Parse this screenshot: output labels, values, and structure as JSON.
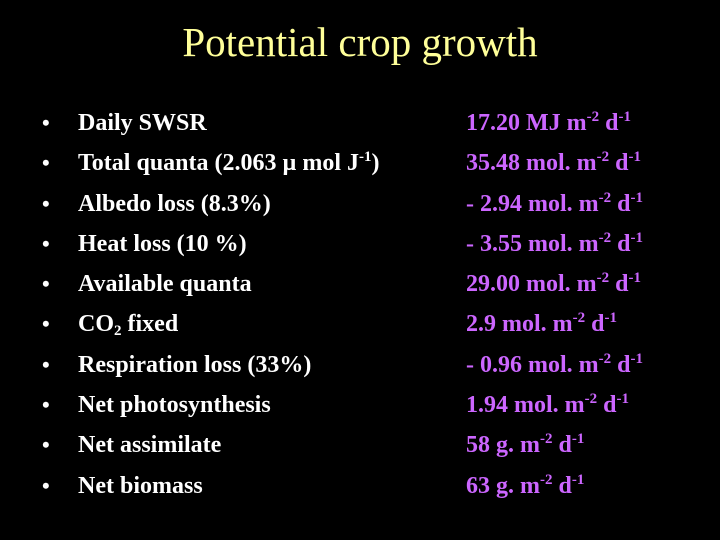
{
  "slide": {
    "title": "Potential crop growth",
    "bullet": "•",
    "rows": [
      {
        "label": [
          {
            "t": "Daily SWSR"
          }
        ],
        "value": [
          {
            "t": "17.20 MJ m"
          },
          {
            "sup": "-2"
          },
          {
            "t": " d"
          },
          {
            "sup": "-1"
          }
        ]
      },
      {
        "label": [
          {
            "t": "Total quanta (2.063 µ mol J"
          },
          {
            "sup": "-1"
          },
          {
            "t": ")"
          }
        ],
        "value": [
          {
            "t": "35.48 mol. m"
          },
          {
            "sup": "-2"
          },
          {
            "t": " d"
          },
          {
            "sup": "-1"
          }
        ]
      },
      {
        "label": [
          {
            "t": "Albedo loss (8.3%)"
          }
        ],
        "value": [
          {
            "t": "- 2.94 mol. m"
          },
          {
            "sup": "-2"
          },
          {
            "t": " d"
          },
          {
            "sup": "-1"
          }
        ]
      },
      {
        "label": [
          {
            "t": "Heat loss (10 %)"
          }
        ],
        "value": [
          {
            "t": "- 3.55 mol. m"
          },
          {
            "sup": "-2"
          },
          {
            "t": " d"
          },
          {
            "sup": "-1"
          }
        ]
      },
      {
        "label": [
          {
            "t": "Available quanta"
          }
        ],
        "value": [
          {
            "t": "29.00 mol. m"
          },
          {
            "sup": "-2"
          },
          {
            "t": " d"
          },
          {
            "sup": "-1"
          }
        ]
      },
      {
        "label": [
          {
            "t": "CO"
          },
          {
            "sub": "2"
          },
          {
            "t": " fixed"
          }
        ],
        "value": [
          {
            "t": "2.9 mol. m"
          },
          {
            "sup": "-2"
          },
          {
            "t": " d"
          },
          {
            "sup": "-1"
          }
        ]
      },
      {
        "label": [
          {
            "t": "Respiration loss (33%)"
          }
        ],
        "value": [
          {
            "t": "- 0.96 mol. m"
          },
          {
            "sup": "-2"
          },
          {
            "t": " d"
          },
          {
            "sup": "-1"
          }
        ]
      },
      {
        "label": [
          {
            "t": "Net photosynthesis"
          }
        ],
        "value": [
          {
            "t": "1.94 mol. m"
          },
          {
            "sup": "-2"
          },
          {
            "t": " d"
          },
          {
            "sup": "-1"
          }
        ]
      },
      {
        "label": [
          {
            "t": "Net assimilate"
          }
        ],
        "value": [
          {
            "t": "58 g. m"
          },
          {
            "sup": "-2"
          },
          {
            "t": " d"
          },
          {
            "sup": "-1"
          }
        ]
      },
      {
        "label": [
          {
            "t": "Net biomass"
          }
        ],
        "value": [
          {
            "t": "63 g. m"
          },
          {
            "sup": "-2"
          },
          {
            "t": " d"
          },
          {
            "sup": "-1"
          }
        ]
      }
    ]
  },
  "colors": {
    "background": "#000000",
    "title": "#FFFF99",
    "label": "#FFFFFF",
    "value": "#CC66FF"
  }
}
